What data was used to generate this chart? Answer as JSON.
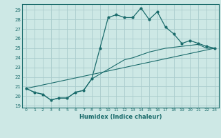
{
  "title": "",
  "xlabel": "Humidex (Indice chaleur)",
  "bg_color": "#cde8e5",
  "grid_color": "#aacccc",
  "line_color": "#1a6b6b",
  "spine_color": "#1a6b6b",
  "xlim": [
    -0.5,
    23.5
  ],
  "ylim": [
    18.8,
    29.6
  ],
  "xticks": [
    0,
    1,
    2,
    3,
    4,
    5,
    6,
    7,
    8,
    9,
    10,
    11,
    12,
    13,
    14,
    15,
    16,
    17,
    18,
    19,
    20,
    21,
    22,
    23
  ],
  "yticks": [
    19,
    20,
    21,
    22,
    23,
    24,
    25,
    26,
    27,
    28,
    29
  ],
  "curve1_x": [
    0,
    1,
    2,
    3,
    4,
    5,
    6,
    7,
    8,
    9,
    10,
    11,
    12,
    13,
    14,
    15,
    16,
    17,
    18,
    19,
    20,
    21,
    22,
    23
  ],
  "curve1_y": [
    20.8,
    20.4,
    20.2,
    19.6,
    19.8,
    19.8,
    20.4,
    20.6,
    21.8,
    25.0,
    28.2,
    28.5,
    28.2,
    28.2,
    29.2,
    28.0,
    28.8,
    27.2,
    26.5,
    25.5,
    25.8,
    25.5,
    25.2,
    25.0
  ],
  "curve2_x": [
    0,
    1,
    2,
    3,
    4,
    5,
    6,
    7,
    8,
    9,
    10,
    11,
    12,
    13,
    14,
    15,
    16,
    17,
    18,
    19,
    20,
    21,
    22,
    23
  ],
  "curve2_y": [
    20.8,
    20.4,
    20.2,
    19.6,
    19.8,
    19.8,
    20.4,
    20.6,
    21.8,
    22.3,
    22.8,
    23.3,
    23.8,
    24.0,
    24.3,
    24.6,
    24.8,
    25.0,
    25.1,
    25.2,
    25.3,
    25.4,
    25.0,
    25.0
  ],
  "curve3_x": [
    0,
    23
  ],
  "curve3_y": [
    20.8,
    25.0
  ]
}
